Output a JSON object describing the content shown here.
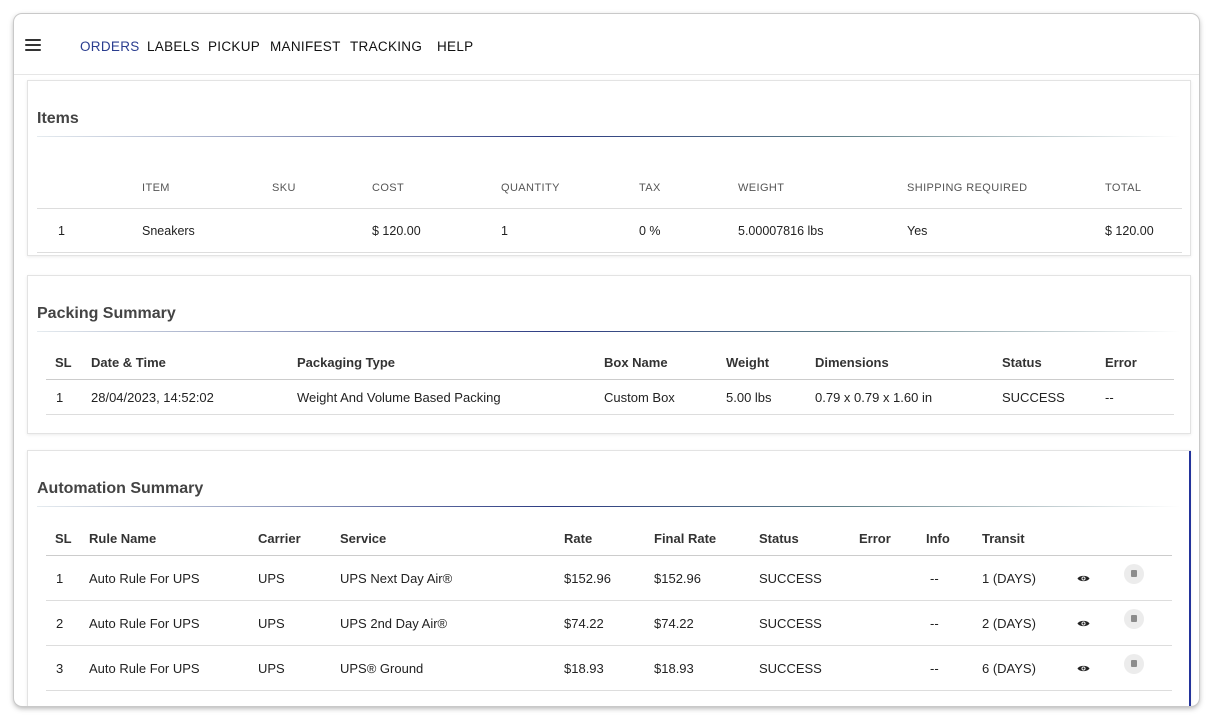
{
  "nav": {
    "items": [
      {
        "label": "ORDERS",
        "active": true
      },
      {
        "label": "LABELS",
        "active": false
      },
      {
        "label": "PICKUP",
        "active": false
      },
      {
        "label": "MANIFEST",
        "active": false
      },
      {
        "label": "TRACKING",
        "active": false
      },
      {
        "label": "HELP",
        "active": false
      }
    ],
    "active_color": "#2a3d8f"
  },
  "items_section": {
    "title": "Items",
    "columns": [
      "",
      "ITEM",
      "SKU",
      "COST",
      "QUANTITY",
      "TAX",
      "WEIGHT",
      "SHIPPING REQUIRED",
      "TOTAL"
    ],
    "rows": [
      [
        "1",
        "Sneakers",
        "",
        "$ 120.00",
        "1",
        "0 %",
        "5.00007816 lbs",
        "Yes",
        "$ 120.00"
      ]
    ]
  },
  "packing_section": {
    "title": "Packing Summary",
    "columns": [
      "SL",
      "Date & Time",
      "Packaging Type",
      "Box Name",
      "Weight",
      "Dimensions",
      "Status",
      "Error"
    ],
    "rows": [
      [
        "1",
        "28/04/2023, 14:52:02",
        "Weight And Volume Based Packing",
        "Custom Box",
        "5.00 lbs",
        "0.79 x 0.79 x 1.60 in",
        "SUCCESS",
        "--"
      ]
    ]
  },
  "automation_section": {
    "title": "Automation Summary",
    "accent_color": "#23339b",
    "columns": [
      "SL",
      "Rule Name",
      "Carrier",
      "Service",
      "Rate",
      "Final Rate",
      "Status",
      "Error",
      "Info",
      "Transit",
      "",
      ""
    ],
    "rows": [
      [
        "1",
        "Auto Rule For UPS",
        "UPS",
        "UPS Next Day Air®",
        "$152.96",
        "$152.96",
        "SUCCESS",
        "",
        "--",
        "1 (DAYS)"
      ],
      [
        "2",
        "Auto Rule For UPS",
        "UPS",
        "UPS 2nd Day Air®",
        "$74.22",
        "$74.22",
        "SUCCESS",
        "",
        "--",
        "2 (DAYS)"
      ],
      [
        "3",
        "Auto Rule For UPS",
        "UPS",
        "UPS® Ground",
        "$18.93",
        "$18.93",
        "SUCCESS",
        "",
        "--",
        "6 (DAYS)"
      ]
    ],
    "row_icons": [
      "eye-icon",
      "document-icon"
    ]
  }
}
